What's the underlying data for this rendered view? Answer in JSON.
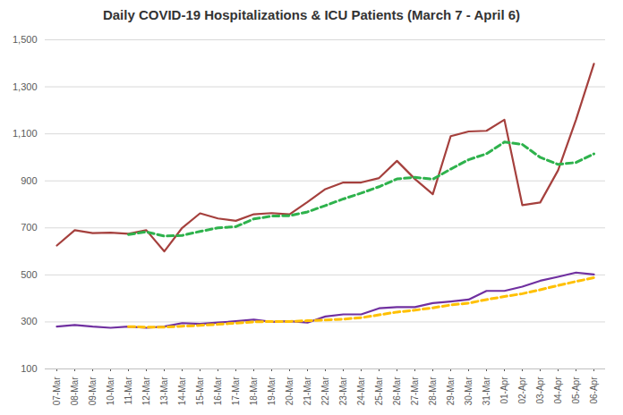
{
  "chart_data": {
    "type": "line",
    "title": "Daily COVID-19 Hospitalizations & ICU Patients (March 7 - April 6)",
    "categories": [
      "07-Mar",
      "08-Mar",
      "09-Mar",
      "10-Mar",
      "11-Mar",
      "12-Mar",
      "13-Mar",
      "14-Mar",
      "15-Mar",
      "16-Mar",
      "17-Mar",
      "18-Mar",
      "19-Mar",
      "20-Mar",
      "21-Mar",
      "22-Mar",
      "23-Mar",
      "24-Mar",
      "25-Mar",
      "26-Mar",
      "27-Mar",
      "28-Mar",
      "29-Mar",
      "30-Mar",
      "31-Mar",
      "01-Apr",
      "02-Apr",
      "03-Apr",
      "04-Apr",
      "05-Apr",
      "06-Apr"
    ],
    "series": [
      {
        "color": "#a5403d",
        "line_style": "solid",
        "values": [
          625,
          690,
          678,
          680,
          675,
          690,
          600,
          700,
          762,
          740,
          730,
          758,
          763,
          758,
          810,
          865,
          893,
          893,
          912,
          985,
          908,
          843,
          1090,
          1110,
          1113,
          1160,
          797,
          808,
          945,
          1160,
          1398
        ]
      },
      {
        "color": "#2eb24c",
        "line_style": "dashed",
        "values": [
          null,
          null,
          null,
          null,
          672,
          683,
          665,
          668,
          685,
          700,
          705,
          738,
          750,
          752,
          768,
          795,
          823,
          848,
          875,
          908,
          915,
          907,
          950,
          990,
          1015,
          1065,
          1055,
          1000,
          970,
          978,
          1015
        ]
      },
      {
        "color": "#7030a0",
        "line_style": "solid",
        "values": [
          280,
          287,
          280,
          275,
          280,
          275,
          280,
          295,
          292,
          297,
          303,
          310,
          300,
          303,
          297,
          323,
          332,
          332,
          358,
          363,
          363,
          380,
          387,
          395,
          432,
          432,
          450,
          475,
          492,
          510,
          502
        ]
      },
      {
        "color": "#ffc000",
        "line_style": "dashed",
        "values": [
          null,
          null,
          null,
          null,
          280,
          278,
          278,
          282,
          285,
          290,
          295,
          300,
          302,
          302,
          305,
          308,
          312,
          318,
          330,
          342,
          350,
          360,
          372,
          380,
          395,
          408,
          420,
          437,
          455,
          472,
          488
        ]
      }
    ],
    "ylim": [
      100,
      1500
    ],
    "yticks": [
      100,
      300,
      500,
      700,
      900,
      1100,
      1300,
      1500
    ],
    "grid": true
  }
}
